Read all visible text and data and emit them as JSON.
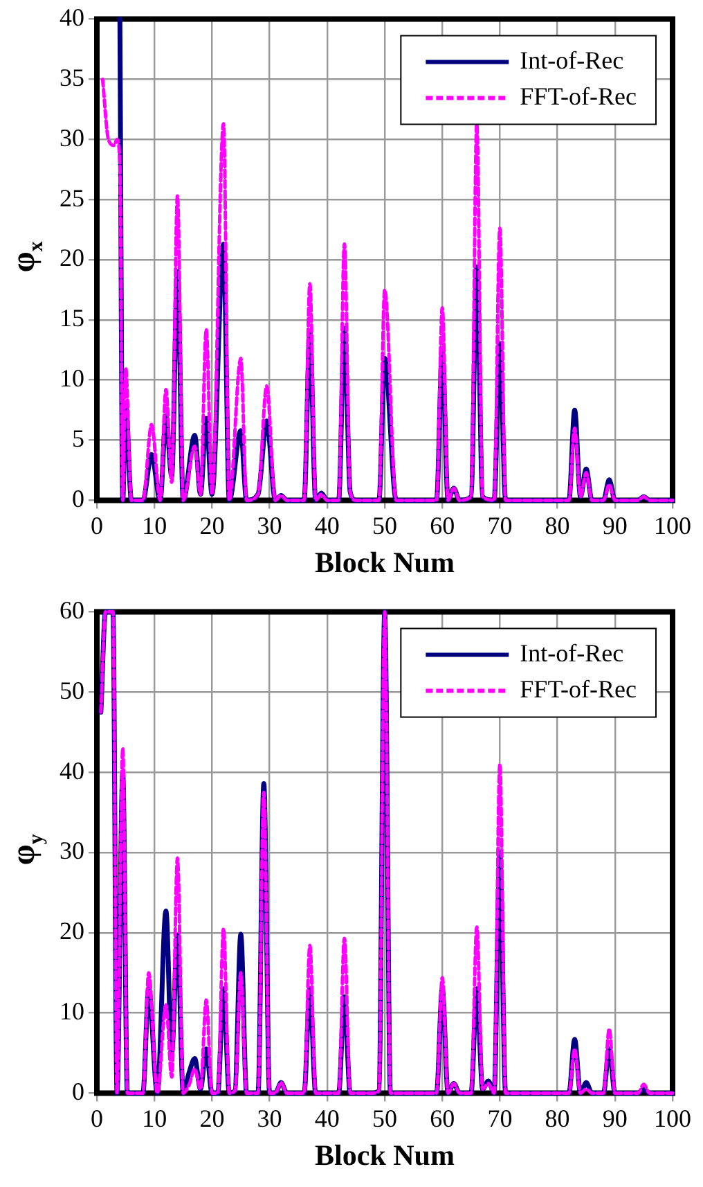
{
  "chart_data": [
    {
      "type": "line",
      "xlabel": "Block Num",
      "ylabel": "φ$_{x}$",
      "xlim": [
        0,
        100
      ],
      "xticks": [
        0,
        10,
        20,
        30,
        40,
        50,
        60,
        70,
        80,
        90,
        100
      ],
      "ylim": [
        0,
        40
      ],
      "yticks": [
        0,
        5,
        10,
        15,
        20,
        25,
        30,
        35,
        40
      ],
      "grid": true,
      "legend": "top right",
      "marker": "none",
      "x": [
        1,
        2,
        3,
        3.5,
        4,
        4.5,
        5,
        6,
        8,
        9.5,
        11,
        12,
        13,
        14,
        15,
        17,
        18,
        19,
        20,
        22,
        23,
        25,
        26,
        28,
        29.5,
        31,
        32,
        33,
        36,
        37,
        38,
        39,
        40,
        42,
        43,
        44,
        45,
        49,
        50,
        52,
        59,
        60,
        61,
        62,
        63,
        65,
        66,
        67,
        69,
        70,
        71,
        82,
        83,
        84,
        85,
        86,
        88,
        89,
        90,
        94,
        95,
        96,
        100
      ],
      "series": [
        {
          "name": "Int-of-Rec",
          "color": "#000080",
          "line_style": "solid",
          "values": [
            null,
            null,
            null,
            null,
            40,
            0,
            8,
            0,
            0,
            3.8,
            0,
            7,
            2,
            19,
            0,
            5.4,
            0.5,
            6.8,
            0.5,
            21.3,
            0,
            5.8,
            0,
            0.5,
            6.6,
            0,
            0.4,
            0,
            0,
            14,
            0,
            0.6,
            0,
            0,
            14.3,
            0.7,
            0,
            0,
            11.8,
            0,
            0,
            12.5,
            0,
            1,
            0,
            0.3,
            19.4,
            0.3,
            0,
            13,
            0,
            0,
            7.5,
            0.3,
            2.6,
            0,
            0,
            1.7,
            0,
            0,
            0.3,
            0,
            0
          ]
        },
        {
          "name": "FFT-of-Rec",
          "color": "#ff00ff",
          "line_style": "dashed",
          "values": [
            35,
            30,
            29.5,
            30,
            28,
            0,
            11,
            0,
            0,
            6.3,
            0,
            9.2,
            1.5,
            25.3,
            0,
            4.5,
            0.5,
            14.2,
            0.5,
            31.3,
            0,
            11.8,
            0,
            0.5,
            9.5,
            0,
            0.4,
            0,
            0,
            18,
            0,
            0.5,
            0,
            0,
            21.3,
            0.7,
            0,
            0,
            17.5,
            0,
            0,
            16,
            0,
            1,
            0,
            0.3,
            31.3,
            0.3,
            0,
            22.6,
            0,
            0,
            6,
            0.3,
            2.3,
            0,
            0,
            1.3,
            0,
            0,
            0.3,
            0,
            0
          ]
        }
      ]
    },
    {
      "type": "line",
      "xlabel": "Block Num",
      "ylabel": "φ$_{y}$",
      "xlim": [
        0,
        100
      ],
      "xticks": [
        0,
        10,
        20,
        30,
        40,
        50,
        60,
        70,
        80,
        90,
        100
      ],
      "ylim": [
        0,
        60
      ],
      "yticks": [
        0,
        10,
        20,
        30,
        40,
        50,
        60
      ],
      "grid": true,
      "legend": "top right",
      "marker": "none",
      "x": [
        0.7,
        1.5,
        2.8,
        3.5,
        4.5,
        5.3,
        8,
        9,
        10.5,
        12,
        13,
        14,
        15,
        16,
        17,
        18,
        19,
        20,
        21,
        22,
        23,
        24,
        25,
        26,
        28,
        29,
        30,
        31,
        32,
        33,
        36,
        37,
        38,
        42,
        43,
        44,
        48,
        49,
        50,
        51,
        59,
        60,
        61,
        62,
        63,
        65,
        66,
        67,
        68,
        69,
        70,
        71,
        82,
        83,
        84,
        85,
        86,
        88,
        89,
        90,
        94,
        95,
        96,
        100
      ],
      "series": [
        {
          "name": "Int-of-Rec",
          "color": "#000080",
          "line_style": "solid",
          "values": [
            47.5,
            60,
            60,
            0,
            40,
            0,
            0,
            13,
            0,
            22.7,
            5,
            19.7,
            0,
            2.5,
            4.3,
            0.5,
            5.5,
            0,
            0,
            13,
            0,
            0.3,
            19.8,
            0,
            0,
            38.6,
            0,
            0,
            1.3,
            0,
            0,
            13,
            0,
            0,
            12,
            0,
            0,
            0.3,
            60,
            0,
            0,
            13,
            0,
            1.2,
            0,
            0,
            13,
            0.5,
            1.5,
            0,
            30,
            0,
            0,
            6.7,
            0,
            1.3,
            0,
            0,
            5.5,
            0,
            0,
            0.5,
            0,
            0
          ]
        },
        {
          "name": "FFT-of-Rec",
          "color": "#ff00ff",
          "line_style": "dashed",
          "values": [
            47.5,
            60,
            60,
            0,
            43,
            0,
            0,
            15,
            0,
            11,
            2,
            29.3,
            0,
            1,
            3,
            0.5,
            11.6,
            0,
            0,
            20.5,
            0,
            0.3,
            15,
            0,
            0,
            37.5,
            0,
            0,
            1.3,
            0,
            0,
            18.4,
            0,
            0,
            19.3,
            0,
            0,
            0.3,
            60,
            0,
            0,
            14.4,
            0,
            1.2,
            0,
            0,
            20.7,
            0.5,
            1.2,
            0,
            41,
            0,
            0,
            5.5,
            0,
            0.5,
            0,
            0,
            8,
            0,
            0,
            1.1,
            0,
            0
          ]
        }
      ]
    }
  ]
}
